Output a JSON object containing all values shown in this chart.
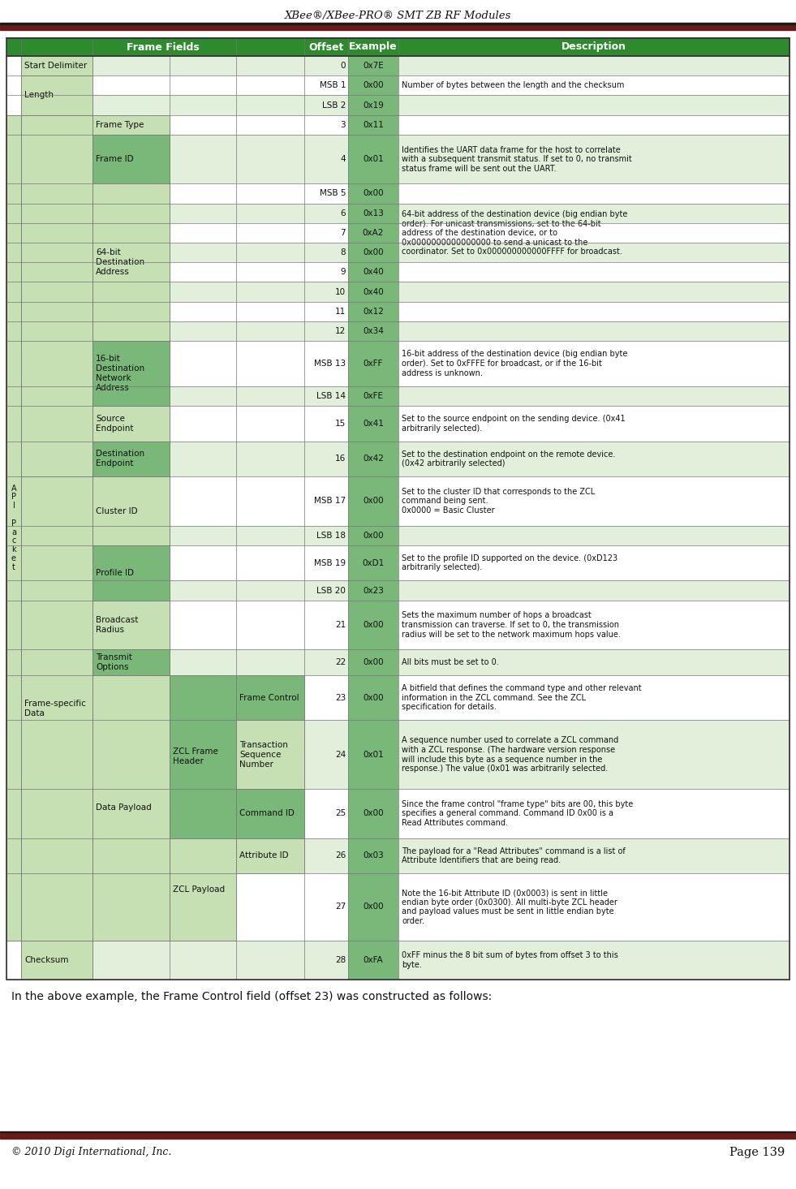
{
  "title": "XBee®/XBee-PRO® SMT ZB RF Modules",
  "footer_left": "© 2010 Digi International, Inc.",
  "footer_right": "Page 139",
  "below_table_text": "In the above example, the Frame Control field (offset 23) was constructed as follows:",
  "header_bg": "#2d8a2d",
  "dark_red": "#6b1a1a",
  "green_dark": "#2d8a2d",
  "green_med": "#7ab87a",
  "green_light": "#c6e0b4",
  "green_pale": "#e2efda",
  "white": "#ffffff",
  "example_bg": "#70ad47",
  "rows": [
    {
      "offset": "0",
      "example": "0x7E",
      "description": ""
    },
    {
      "offset": "MSB 1",
      "example": "0x00",
      "description": "Number of bytes between the length and the checksum"
    },
    {
      "offset": "LSB 2",
      "example": "0x19",
      "description": ""
    },
    {
      "offset": "3",
      "example": "0x11",
      "description": ""
    },
    {
      "offset": "4",
      "example": "0x01",
      "description": "Identifies the UART data frame for the host to correlate\nwith a subsequent transmit status. If set to 0, no transmit\nstatus frame will be sent out the UART."
    },
    {
      "offset": "MSB 5",
      "example": "0x00",
      "description": ""
    },
    {
      "offset": "6",
      "example": "0x13",
      "description": ""
    },
    {
      "offset": "7",
      "example": "0xA2",
      "description": "64-bit address of the destination device (big endian byte\norder). For unicast transmissions, set to the 64-bit\naddress of the destination device, or to\n0x0000000000000000 to send a unicast to the\ncoordinator. Set to 0x000000000000FFFF for broadcast."
    },
    {
      "offset": "8",
      "example": "0x00",
      "description": ""
    },
    {
      "offset": "9",
      "example": "0x40",
      "description": ""
    },
    {
      "offset": "10",
      "example": "0x40",
      "description": ""
    },
    {
      "offset": "11",
      "example": "0x12",
      "description": ""
    },
    {
      "offset": "12",
      "example": "0x34",
      "description": ""
    },
    {
      "offset": "MSB 13",
      "example": "0xFF",
      "description": "16-bit address of the destination device (big endian byte\norder). Set to 0xFFFE for broadcast, or if the 16-bit\naddress is unknown."
    },
    {
      "offset": "LSB 14",
      "example": "0xFE",
      "description": ""
    },
    {
      "offset": "15",
      "example": "0x41",
      "description": "Set to the source endpoint on the sending device. (0x41\narbitrarily selected)."
    },
    {
      "offset": "16",
      "example": "0x42",
      "description": "Set to the destination endpoint on the remote device.\n(0x42 arbitrarily selected)"
    },
    {
      "offset": "MSB 17",
      "example": "0x00",
      "description": "Set to the cluster ID that corresponds to the ZCL\ncommand being sent.\n0x0000 = Basic Cluster"
    },
    {
      "offset": "LSB 18",
      "example": "0x00",
      "description": ""
    },
    {
      "offset": "MSB 19",
      "example": "0xD1",
      "description": "Set to the profile ID supported on the device. (0xD123\narbitrarily selected)."
    },
    {
      "offset": "LSB 20",
      "example": "0x23",
      "description": ""
    },
    {
      "offset": "21",
      "example": "0x00",
      "description": "Sets the maximum number of hops a broadcast\ntransmission can traverse. If set to 0, the transmission\nradius will be set to the network maximum hops value."
    },
    {
      "offset": "22",
      "example": "0x00",
      "description": "All bits must be set to 0."
    },
    {
      "offset": "23",
      "example": "0x00",
      "description": "A bitfield that defines the command type and other relevant\ninformation in the ZCL command. See the ZCL\nspecification for details."
    },
    {
      "offset": "24",
      "example": "0x01",
      "description": "A sequence number used to correlate a ZCL command\nwith a ZCL response. (The hardware version response\nwill include this byte as a sequence number in the\nresponse.) The value (0x01 was arbitrarily selected."
    },
    {
      "offset": "25",
      "example": "0x00",
      "description": "Since the frame control \"frame type\" bits are 00, this byte\nspecifies a general command. Command ID 0x00 is a\nRead Attributes command."
    },
    {
      "offset": "26",
      "example": "0x03",
      "description": "The payload for a \"Read Attributes\" command is a list of\nAttribute Identifiers that are being read."
    },
    {
      "offset": "27",
      "example": "0x00",
      "description": "Note the 16-bit Attribute ID (0x0003) is sent in little\nendian byte order (0x0300). All multi-byte ZCL header\nand payload values must be sent in little endian byte\norder."
    },
    {
      "offset": "28",
      "example": "0xFA",
      "description": "0xFF minus the 8 bit sum of bytes from offset 3 to this\nbyte."
    }
  ]
}
